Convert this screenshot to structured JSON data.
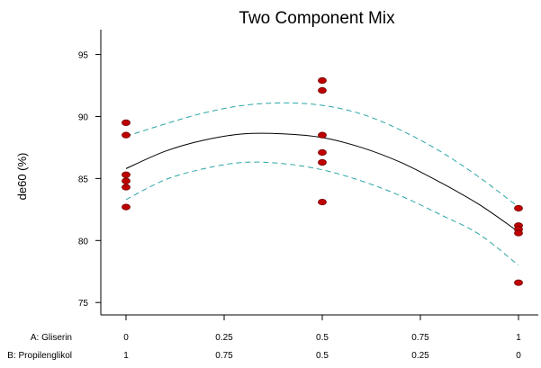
{
  "chart_data": {
    "type": "scatter",
    "title": "Two Component Mix",
    "ylabel": "de60 (%)",
    "xlim": [
      0,
      1
    ],
    "ylim": [
      74,
      97
    ],
    "yticks": [
      75,
      80,
      85,
      90,
      95
    ],
    "x_axes": [
      {
        "name": "A: Gliserin",
        "ticks": [
          "0",
          "0.25",
          "0.5",
          "0.75",
          "1"
        ]
      },
      {
        "name": "B: Propilenglikol",
        "ticks": [
          "1",
          "0.75",
          "0.5",
          "0.25",
          "0"
        ]
      }
    ],
    "points": {
      "x": [
        0,
        0,
        0,
        0,
        0,
        0,
        0.5,
        0.5,
        0.5,
        0.5,
        0.5,
        0.5,
        1,
        1,
        1,
        1,
        1
      ],
      "y": [
        89.5,
        88.5,
        85.3,
        84.8,
        84.3,
        82.7,
        92.9,
        92.1,
        88.5,
        87.1,
        86.3,
        83.1,
        82.6,
        81.2,
        80.9,
        80.6,
        76.6
      ]
    },
    "fit": {
      "x": [
        0,
        0.1,
        0.2,
        0.3,
        0.4,
        0.5,
        0.6,
        0.7,
        0.8,
        0.9,
        1
      ],
      "y": [
        85.8,
        87.2,
        88.1,
        88.6,
        88.6,
        88.3,
        87.5,
        86.3,
        84.7,
        82.9,
        80.7
      ]
    },
    "ci_upper": {
      "x": [
        0,
        0.1,
        0.2,
        0.3,
        0.4,
        0.5,
        0.6,
        0.7,
        0.8,
        0.9,
        1
      ],
      "y": [
        88.4,
        89.4,
        90.3,
        90.9,
        91.1,
        90.9,
        90.2,
        88.9,
        87.2,
        85.1,
        82.7
      ]
    },
    "ci_lower": {
      "x": [
        0,
        0.1,
        0.2,
        0.3,
        0.4,
        0.5,
        0.6,
        0.7,
        0.8,
        0.9,
        1
      ],
      "y": [
        83.3,
        84.9,
        85.8,
        86.3,
        86.2,
        85.7,
        84.8,
        83.6,
        82.1,
        80.5,
        78.0
      ]
    },
    "colors": {
      "point": "#c00000",
      "point_edge": "#700000",
      "fit": "#000000",
      "ci": "#2aa5a5",
      "axis": "#000000"
    },
    "grid": false
  }
}
